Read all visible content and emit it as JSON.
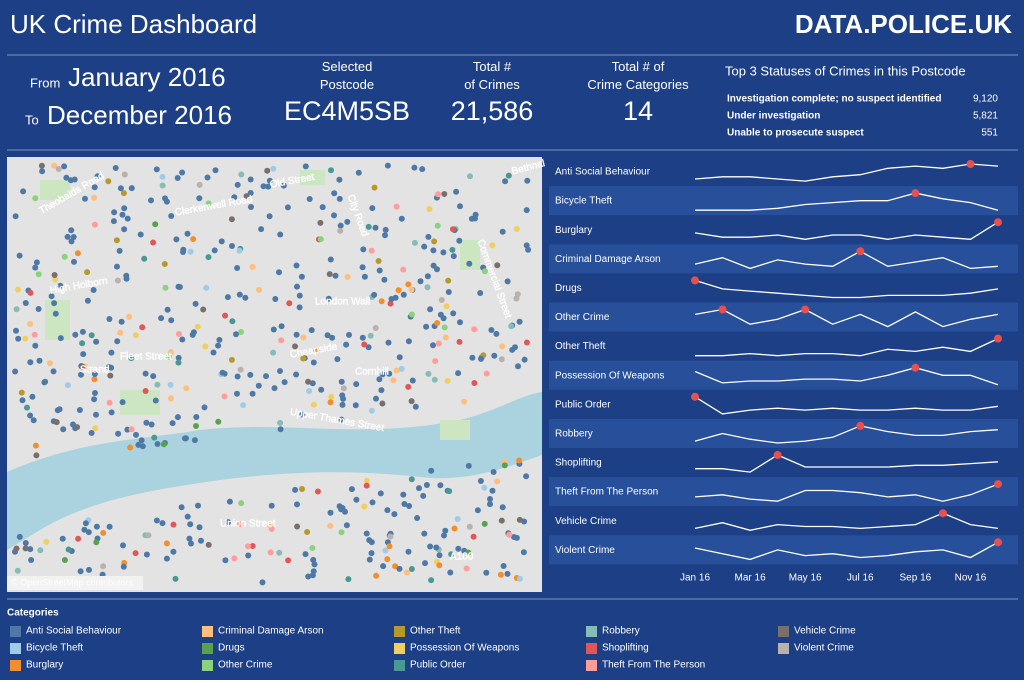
{
  "header": {
    "title": "UK Crime Dashboard",
    "brand": "DATA.POLICE.UK"
  },
  "period": {
    "from_label": "From",
    "from": "January 2016",
    "to_label": "To",
    "to": "December 2016"
  },
  "kpis": [
    {
      "label": "Selected Postcode",
      "value": "EC4M5SB"
    },
    {
      "label": "Total # of Crimes",
      "value": "21,586"
    },
    {
      "label": "Total # of Crime Categories",
      "value": "14"
    }
  ],
  "statuses": {
    "title": "Top 3 Statuses of Crimes in this Postcode",
    "rows": [
      {
        "status": "Investigation complete; no suspect identified",
        "count": "9,120"
      },
      {
        "status": "Under investigation",
        "count": "5,821"
      },
      {
        "status": "Unable to prosecute suspect",
        "count": "551"
      }
    ]
  },
  "map": {
    "attribution": "© OpenStreetMap contributors",
    "labels": [
      "Theobalds Road",
      "High Holborn",
      "Fleet Street",
      "Strand",
      "London Wall",
      "Cheapside",
      "Cornhill",
      "Upper Thames Street",
      "Union Street",
      "Old Street",
      "City Road",
      "Bethnal",
      "A100",
      "Commercial Street",
      "Clerkenwell Road"
    ]
  },
  "chart_data": {
    "type": "line",
    "color": "#ffffff",
    "highlight_color": "#e8504f",
    "categories": [
      "Jan 16",
      null,
      "Mar 16",
      null,
      "May 16",
      null,
      "Jul 16",
      null,
      "Sep 16",
      null,
      "Nov 16",
      null
    ],
    "series": [
      {
        "name": "Anti Social Behaviour",
        "values": [
          3,
          4,
          4,
          3,
          2,
          4,
          5,
          8,
          9,
          8,
          10,
          9
        ]
      },
      {
        "name": "Bicycle Theft",
        "values": [
          1,
          1,
          1,
          2,
          4,
          5,
          6,
          6,
          10,
          7,
          5,
          1
        ]
      },
      {
        "name": "Burglary",
        "values": [
          5,
          3,
          3,
          4,
          2,
          4,
          4,
          2,
          4,
          3,
          2,
          10
        ]
      },
      {
        "name": "Criminal Damage Arson",
        "values": [
          4,
          7,
          2,
          6,
          4,
          3,
          10,
          3,
          5,
          7,
          2,
          3
        ]
      },
      {
        "name": "Drugs",
        "values": [
          10,
          6,
          5,
          4,
          3,
          2,
          2,
          3,
          3,
          3,
          4,
          6
        ]
      },
      {
        "name": "Other Crime",
        "values": [
          8,
          10,
          4,
          6,
          10,
          4,
          8,
          3,
          9,
          3,
          6,
          8
        ]
      },
      {
        "name": "Other Theft",
        "values": [
          2,
          2,
          3,
          2,
          3,
          3,
          2,
          5,
          4,
          6,
          4,
          10
        ]
      },
      {
        "name": "Possession Of Weapons",
        "values": [
          8,
          2,
          3,
          3,
          4,
          4,
          3,
          6,
          10,
          6,
          6,
          1
        ]
      },
      {
        "name": "Public Order",
        "values": [
          10,
          1,
          3,
          4,
          3,
          4,
          3,
          3,
          4,
          3,
          3,
          5
        ]
      },
      {
        "name": "Robbery",
        "values": [
          2,
          6,
          3,
          1,
          2,
          4,
          10,
          7,
          5,
          5,
          7,
          8
        ]
      },
      {
        "name": "Shoplifting",
        "values": [
          2,
          2,
          0,
          10,
          3,
          3,
          3,
          3,
          4,
          4,
          5,
          6
        ]
      },
      {
        "name": "Theft From The Person",
        "values": [
          4,
          5,
          3,
          2,
          7,
          7,
          6,
          4,
          5,
          2,
          5,
          10
        ]
      },
      {
        "name": "Vehicle Crime",
        "values": [
          2,
          5,
          1,
          4,
          3,
          3,
          2,
          3,
          4,
          10,
          4,
          2
        ]
      },
      {
        "name": "Violent Crime",
        "values": [
          7,
          4,
          1,
          6,
          3,
          4,
          2,
          3,
          5,
          6,
          2,
          10
        ]
      }
    ]
  },
  "legend": {
    "title": "Categories",
    "items": [
      {
        "name": "Anti Social Behaviour",
        "color": "#4e79a7"
      },
      {
        "name": "Bicycle Theft",
        "color": "#a0cbe8"
      },
      {
        "name": "Burglary",
        "color": "#f28e2b"
      },
      {
        "name": "Criminal Damage Arson",
        "color": "#ffbe7d"
      },
      {
        "name": "Drugs",
        "color": "#59a14f"
      },
      {
        "name": "Other Crime",
        "color": "#8cd17d"
      },
      {
        "name": "Other Theft",
        "color": "#b6992d"
      },
      {
        "name": "Possession Of Weapons",
        "color": "#f1ce63"
      },
      {
        "name": "Public Order",
        "color": "#499894"
      },
      {
        "name": "Robbery",
        "color": "#86bcb6"
      },
      {
        "name": "Shoplifting",
        "color": "#e15759"
      },
      {
        "name": "Theft From The Person",
        "color": "#ff9d9a"
      },
      {
        "name": "Vehicle Crime",
        "color": "#79706e"
      },
      {
        "name": "Violent Crime",
        "color": "#bab0ac"
      }
    ]
  }
}
